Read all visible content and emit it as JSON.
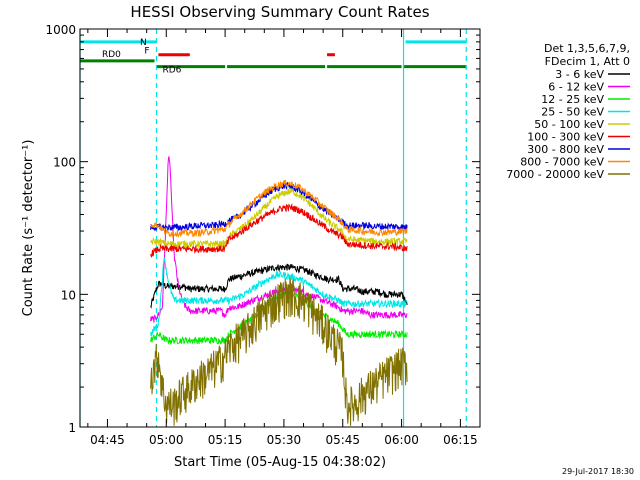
{
  "chart_data": {
    "type": "line",
    "title": "HESSI Observing Summary Count Rates",
    "xlabel": "Start Time (05-Aug-15 04:38:02)",
    "ylabel": "Count Rate (s⁻¹ detector⁻¹)",
    "yscale": "log",
    "xlim_minutes": [
      0,
      102
    ],
    "ylim": [
      1,
      1000
    ],
    "x_ticks": [
      {
        "label": "04:45",
        "min": 7
      },
      {
        "label": "05:00",
        "min": 22
      },
      {
        "label": "05:15",
        "min": 37
      },
      {
        "label": "05:30",
        "min": 52
      },
      {
        "label": "05:45",
        "min": 67
      },
      {
        "label": "06:00",
        "min": 82
      },
      {
        "label": "06:15",
        "min": 97
      }
    ],
    "y_ticks": [
      {
        "label": "1",
        "value": 1
      },
      {
        "label": "10",
        "value": 10
      },
      {
        "label": "100",
        "value": 100
      },
      {
        "label": "1000",
        "value": 1000
      }
    ],
    "legend_title": [
      "Det 1,3,5,6,7,9,",
      "FDecim 1, Att 0"
    ],
    "legend_position": "outside-right",
    "data_start_min": 18,
    "data_end_min": 83.5,
    "series": [
      {
        "name": "3 - 6 keV",
        "color": "#000000",
        "x": [
          18,
          19.5,
          20,
          21,
          22,
          24,
          26,
          28,
          30,
          32,
          34,
          36,
          37,
          38,
          40,
          42,
          44,
          46,
          48,
          50,
          52,
          54,
          56,
          58,
          60,
          62,
          63,
          64,
          65,
          66,
          67,
          68,
          70,
          72,
          74,
          76,
          78,
          80,
          82,
          83,
          83.5
        ],
        "y": [
          8,
          11,
          12,
          12,
          11.5,
          11.5,
          11.5,
          11,
          11,
          11,
          11,
          11,
          11,
          13,
          13.5,
          14,
          14.5,
          15,
          15.5,
          16,
          16,
          16,
          15.5,
          15,
          14,
          13.5,
          13,
          13,
          13,
          13,
          11,
          11,
          11,
          10.5,
          10.5,
          10.5,
          10,
          10,
          10,
          9,
          8
        ]
      },
      {
        "name": "6 - 12 keV",
        "color": "#ee00ee",
        "x": [
          18,
          19,
          20,
          21,
          22,
          22.5,
          23,
          23.5,
          24,
          25,
          26,
          27,
          28,
          30,
          32,
          34,
          36,
          37,
          38,
          40,
          42,
          44,
          46,
          48,
          50,
          52,
          54,
          56,
          58,
          60,
          62,
          64,
          66,
          67,
          68,
          70,
          72,
          74,
          76,
          78,
          80,
          82,
          83.5
        ],
        "y": [
          6.5,
          6.5,
          7,
          8,
          40,
          110,
          90,
          40,
          20,
          12,
          9,
          8,
          7.5,
          7.5,
          7.5,
          7.5,
          7.5,
          7,
          8,
          8,
          8.5,
          9,
          9.5,
          10,
          10.5,
          11,
          11,
          10.5,
          10,
          9.5,
          9,
          8.5,
          8,
          7.5,
          7.5,
          7.5,
          7.5,
          7,
          7,
          7,
          7,
          7,
          7
        ]
      },
      {
        "name": "12 - 25 keV",
        "color": "#00ee00",
        "x": [
          18,
          20,
          22,
          26,
          30,
          34,
          37,
          38,
          40,
          42,
          44,
          46,
          48,
          50,
          52,
          54,
          56,
          58,
          60,
          62,
          64,
          66,
          67,
          68,
          72,
          76,
          80,
          83.5
        ],
        "y": [
          4.5,
          5,
          4.5,
          4.5,
          4.5,
          4.5,
          4.5,
          5,
          5.5,
          6,
          6.5,
          7.5,
          8.5,
          9.5,
          10,
          10,
          9.5,
          8.5,
          7.5,
          7,
          6.5,
          6,
          5.5,
          5,
          5,
          5,
          5,
          5
        ]
      },
      {
        "name": "25 - 50 keV",
        "color": "#00e6e6",
        "x": [
          18,
          20,
          21,
          21.5,
          22,
          23,
          24,
          26,
          30,
          34,
          37,
          38,
          40,
          42,
          44,
          46,
          48,
          50,
          52,
          54,
          56,
          58,
          60,
          62,
          64,
          66,
          67,
          68,
          72,
          76,
          80,
          83.5
        ],
        "y": [
          5,
          6,
          13,
          20,
          15,
          11,
          9,
          9,
          9,
          9,
          9,
          9,
          9.5,
          10,
          11,
          12,
          13,
          14,
          14,
          13.5,
          13,
          12,
          11,
          10,
          9.5,
          9,
          8.5,
          8.5,
          8.5,
          8.5,
          8.5,
          8.5
        ]
      },
      {
        "name": "50 - 100 keV",
        "color": "#cccc00",
        "x": [
          18,
          20,
          22,
          26,
          30,
          34,
          37,
          38,
          40,
          42,
          44,
          46,
          48,
          50,
          52,
          54,
          56,
          58,
          60,
          62,
          64,
          66,
          67,
          68,
          72,
          76,
          80,
          83.5
        ],
        "y": [
          25,
          25,
          24,
          24,
          24,
          24,
          24,
          27,
          30,
          33,
          37,
          42,
          48,
          54,
          58,
          60,
          56,
          50,
          44,
          38,
          34,
          31,
          29,
          26,
          25.5,
          25,
          25,
          25
        ]
      },
      {
        "name": "100 - 300 keV",
        "color": "#ee0000",
        "x": [
          18,
          20,
          22,
          26,
          30,
          34,
          37,
          38,
          40,
          42,
          44,
          46,
          48,
          50,
          52,
          54,
          56,
          58,
          60,
          62,
          64,
          66,
          67,
          68,
          72,
          76,
          80,
          83.5
        ],
        "y": [
          20,
          22,
          22,
          22,
          22,
          22,
          22,
          26,
          28,
          31,
          34,
          37,
          40,
          43,
          45,
          45,
          43,
          40,
          36,
          33,
          30,
          28,
          27,
          24,
          23.5,
          23,
          23,
          22
        ]
      },
      {
        "name": "300 - 800 keV",
        "color": "#0000dd",
        "x": [
          18,
          20,
          22,
          26,
          30,
          34,
          37,
          38,
          40,
          42,
          44,
          46,
          48,
          50,
          52,
          54,
          56,
          58,
          60,
          62,
          64,
          66,
          67,
          68,
          72,
          76,
          80,
          83.5
        ],
        "y": [
          32,
          32,
          32,
          32,
          33,
          33,
          34,
          36,
          38,
          42,
          47,
          52,
          58,
          63,
          66,
          65,
          61,
          55,
          49,
          44,
          40,
          37,
          35,
          33,
          33,
          32.5,
          32.5,
          32
        ]
      },
      {
        "name": "800 - 7000 keV",
        "color": "#ff8800",
        "x": [
          18,
          20,
          22,
          26,
          30,
          34,
          37,
          38,
          40,
          42,
          44,
          46,
          48,
          50,
          52,
          54,
          56,
          58,
          60,
          62,
          64,
          66,
          67,
          68,
          72,
          76,
          80,
          83.5
        ],
        "y": [
          34,
          33,
          29,
          29,
          29,
          30,
          31,
          34,
          38,
          43,
          49,
          55,
          61,
          66,
          69,
          68,
          64,
          58,
          52,
          46,
          41,
          37,
          34,
          31,
          30,
          29.5,
          29.5,
          30
        ]
      },
      {
        "name": "7000 - 20000 keV",
        "color": "#807000",
        "x": [
          18,
          20,
          21,
          22,
          24,
          26,
          28,
          30,
          32,
          34,
          36,
          37,
          38,
          40,
          42,
          44,
          46,
          48,
          50,
          52,
          54,
          56,
          58,
          60,
          62,
          64,
          66,
          67,
          68,
          70,
          72,
          74,
          76,
          78,
          80,
          82,
          83.5
        ],
        "y": [
          2.5,
          3.5,
          2,
          1.5,
          1.5,
          1.8,
          2,
          2.3,
          2.5,
          2.8,
          3.2,
          3.5,
          4,
          4.5,
          5,
          6,
          7,
          8,
          9,
          10,
          10,
          9.5,
          8.5,
          7,
          6,
          5,
          4,
          3.5,
          1.5,
          1.5,
          1.8,
          2,
          2.2,
          2.5,
          2.7,
          3,
          3
        ]
      }
    ],
    "vertical_lines": [
      {
        "min": 0,
        "color": "#00e6e6",
        "style": "solid"
      },
      {
        "min": 19.5,
        "color": "#00e6e6",
        "style": "dashed"
      },
      {
        "min": 82.5,
        "color": "#00e6e6",
        "style": "solid"
      },
      {
        "min": 98.5,
        "color": "#00e6e6",
        "style": "dashed"
      }
    ],
    "flag_bars": [
      {
        "label": "N",
        "color": "#00e6e6",
        "value": 800,
        "segments": [
          [
            0,
            19.5
          ],
          [
            83,
            98.5
          ]
        ]
      },
      {
        "label": "F",
        "color": "#ee0000",
        "value": 640,
        "segments": [
          [
            20,
            28
          ],
          [
            63,
            65
          ]
        ]
      },
      {
        "label": "RD0",
        "color": "#008000",
        "value": 575,
        "segments": [
          [
            0,
            19
          ]
        ]
      },
      {
        "label": "RD6",
        "color": "#008000",
        "value": 520,
        "segments": [
          [
            19.5,
            37
          ],
          [
            37.5,
            62.5
          ],
          [
            63,
            82
          ],
          [
            82.5,
            98.5
          ]
        ]
      }
    ]
  },
  "footer_date": "29-Jul-2017 18:30"
}
